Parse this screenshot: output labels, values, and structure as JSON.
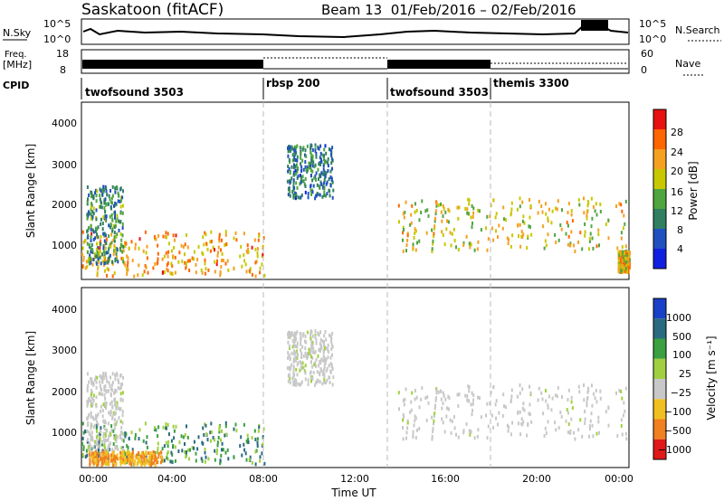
{
  "header": {
    "station": "Saskatoon (fitACF)",
    "beam_info": "Beam 13  01/Feb/2016 – 02/Feb/2016"
  },
  "top_panels": {
    "nsky_label": "N.Sky",
    "nsky_ticks": [
      "10^5",
      "10^0"
    ],
    "nsearch_label": "N.Search",
    "freq_label": "Freq.",
    "freq_unit": "[MHz]",
    "freq_ticks": [
      "18",
      "8"
    ],
    "nave_label": "Nave",
    "nave_ticks": [
      "60",
      "0"
    ],
    "cpid_label": "CPID",
    "cpid_segments": [
      {
        "label": "twofsound 3503",
        "start_hour": 0.0
      },
      {
        "label": "rbsp 200",
        "start_hour": 8.0
      },
      {
        "label": "twofsound 3503",
        "start_hour": 13.5
      },
      {
        "label": "themis 3300",
        "start_hour": 18.0
      }
    ]
  },
  "chart_data": [
    {
      "type": "heatmap",
      "title": "",
      "xlabel": "",
      "ylabel": "Slant Range [km]",
      "xlim": [
        0,
        24
      ],
      "ylim": [
        180,
        4500
      ],
      "yticks": [
        "1000",
        "2000",
        "3000",
        "4000"
      ],
      "colorbar": {
        "label": "Power [dB]",
        "ticks": [
          "4",
          "8",
          "12",
          "16",
          "20",
          "24",
          "28"
        ],
        "range": [
          0,
          30
        ],
        "colors": [
          "#1020e0",
          "#2050c0",
          "#2f7f60",
          "#4fa540",
          "#c8c800",
          "#f5a020",
          "#ff6600",
          "#e81010"
        ]
      },
      "regions": [
        {
          "t0": 0.0,
          "t1": 8.0,
          "r0": 300,
          "r1": 1400,
          "level": 22
        },
        {
          "t0": 0.2,
          "t1": 1.8,
          "r0": 600,
          "r1": 2500,
          "level": 10
        },
        {
          "t0": 9.0,
          "t1": 11.0,
          "r0": 2200,
          "r1": 3500,
          "level": 8
        },
        {
          "t0": 13.8,
          "t1": 24.0,
          "r0": 900,
          "r1": 2200,
          "level": 18
        },
        {
          "t0": 23.5,
          "t1": 24.0,
          "r0": 400,
          "r1": 900,
          "level": 20
        }
      ]
    },
    {
      "type": "heatmap",
      "title": "",
      "xlabel": "Time UT",
      "ylabel": "Slant Range [km]",
      "xlim": [
        0,
        24
      ],
      "ylim": [
        180,
        4500
      ],
      "xticks": [
        "00:00",
        "04:00",
        "08:00",
        "12:00",
        "16:00",
        "20:00",
        "00:00"
      ],
      "yticks": [
        "1000",
        "2000",
        "3000",
        "4000"
      ],
      "colorbar": {
        "label": "Velocity [m s⁻¹]",
        "ticks": [
          "1000",
          "500",
          "100",
          "25",
          "−25",
          "−100",
          "−500",
          "−1000"
        ],
        "colors": [
          "#1a3fc8",
          "#2a6a80",
          "#3aa040",
          "#a0d040",
          "#c8c8c8",
          "#f0c020",
          "#f08020",
          "#e01818"
        ]
      },
      "regions": [
        {
          "t0": 0.0,
          "t1": 8.0,
          "r0": 300,
          "r1": 1300,
          "velocity": 150
        },
        {
          "t0": 0.2,
          "t1": 1.8,
          "r0": 600,
          "r1": 2500,
          "velocity": 0
        },
        {
          "t0": 9.0,
          "t1": 11.0,
          "r0": 2200,
          "r1": 3500,
          "velocity": 0
        },
        {
          "t0": 13.8,
          "t1": 24.0,
          "r0": 900,
          "r1": 2200,
          "velocity": 0
        },
        {
          "t0": 0.3,
          "t1": 3.5,
          "r0": 280,
          "r1": 600,
          "velocity": -120
        }
      ]
    }
  ]
}
